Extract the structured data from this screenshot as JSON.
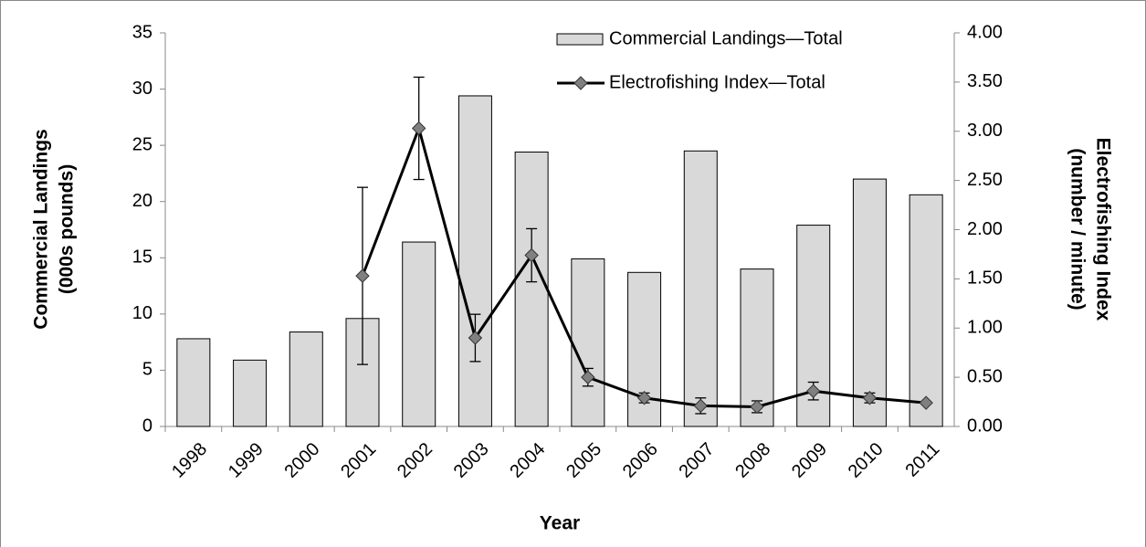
{
  "chart_data": {
    "type": "bar-line",
    "x_label": "Year",
    "y_label": [
      "Commercial Landings",
      "(000s pounds)"
    ],
    "y2_label": [
      "Electrofishing Index",
      "(number / minute)"
    ],
    "categories": [
      "1998",
      "1999",
      "2000",
      "2001",
      "2002",
      "2003",
      "2004",
      "2005",
      "2006",
      "2007",
      "2008",
      "2009",
      "2010",
      "2011"
    ],
    "series": [
      {
        "name": "Commercial Landings—Total",
        "type": "bar",
        "color": "#d9d9d9",
        "values": [
          7.8,
          5.9,
          8.4,
          9.6,
          16.4,
          29.4,
          24.4,
          14.9,
          13.7,
          24.5,
          14.0,
          17.9,
          22.0,
          20.6
        ]
      },
      {
        "name": "Electrofishing Index—Total",
        "type": "line",
        "axis": "y2",
        "color": "#808080",
        "values": [
          null,
          null,
          null,
          1.53,
          3.03,
          0.9,
          1.74,
          0.5,
          0.29,
          0.21,
          0.2,
          0.36,
          0.29,
          0.24
        ],
        "errors": [
          null,
          null,
          null,
          0.9,
          0.52,
          0.24,
          0.27,
          0.09,
          0.05,
          0.08,
          0.06,
          0.09,
          0.05,
          null
        ]
      }
    ],
    "ylim": [
      0,
      35
    ],
    "yticks": [
      0,
      5,
      10,
      15,
      20,
      25,
      30,
      35
    ],
    "y2lim": [
      0,
      4
    ],
    "y2ticks": [
      {
        "value": 0,
        "label": "0.00"
      },
      {
        "value": 0.5,
        "label": "0.50"
      },
      {
        "value": 1,
        "label": "1.00"
      },
      {
        "value": 1.5,
        "label": "1.50"
      },
      {
        "value": 2,
        "label": "2.00"
      },
      {
        "value": 2.5,
        "label": "2.50"
      },
      {
        "value": 3,
        "label": "3.00"
      },
      {
        "value": 3.5,
        "label": "3.50"
      },
      {
        "value": 4,
        "label": "4.00"
      }
    ],
    "legend": "top-right"
  }
}
